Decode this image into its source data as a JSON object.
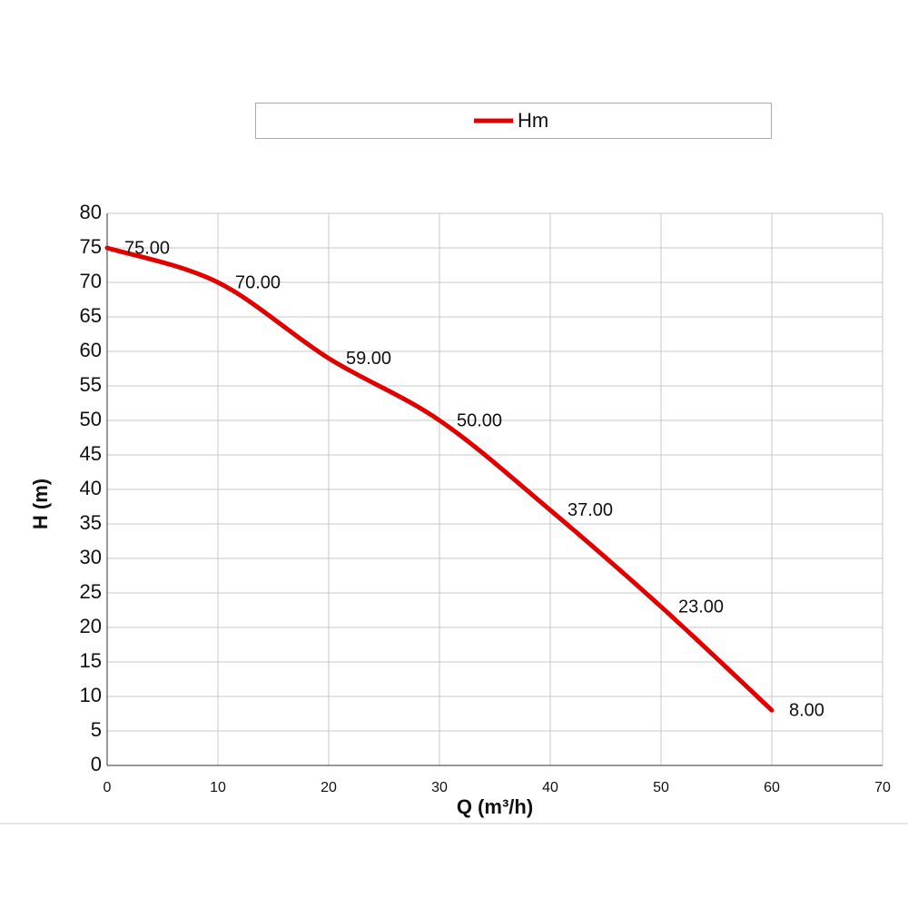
{
  "chart_data": {
    "type": "line",
    "x": [
      0,
      10,
      20,
      30,
      40,
      50,
      60
    ],
    "series": [
      {
        "name": "Hm",
        "color": "#e00000",
        "values": [
          75,
          70,
          59,
          50,
          37,
          23,
          8
        ],
        "value_labels": [
          "75.00",
          "70.00",
          "59.00",
          "50.00",
          "37.00",
          "23.00",
          "8.00"
        ]
      }
    ],
    "xlabel": "Q (m³/h)",
    "ylabel": "H (m)",
    "xlim": [
      0,
      70
    ],
    "xticks": [
      0,
      10,
      20,
      30,
      40,
      50,
      60,
      70
    ],
    "ylim": [
      0,
      80
    ],
    "yticks": [
      0,
      5,
      10,
      15,
      20,
      25,
      30,
      35,
      40,
      45,
      50,
      55,
      60,
      65,
      70,
      75,
      80
    ],
    "grid": true,
    "legend": "top"
  }
}
